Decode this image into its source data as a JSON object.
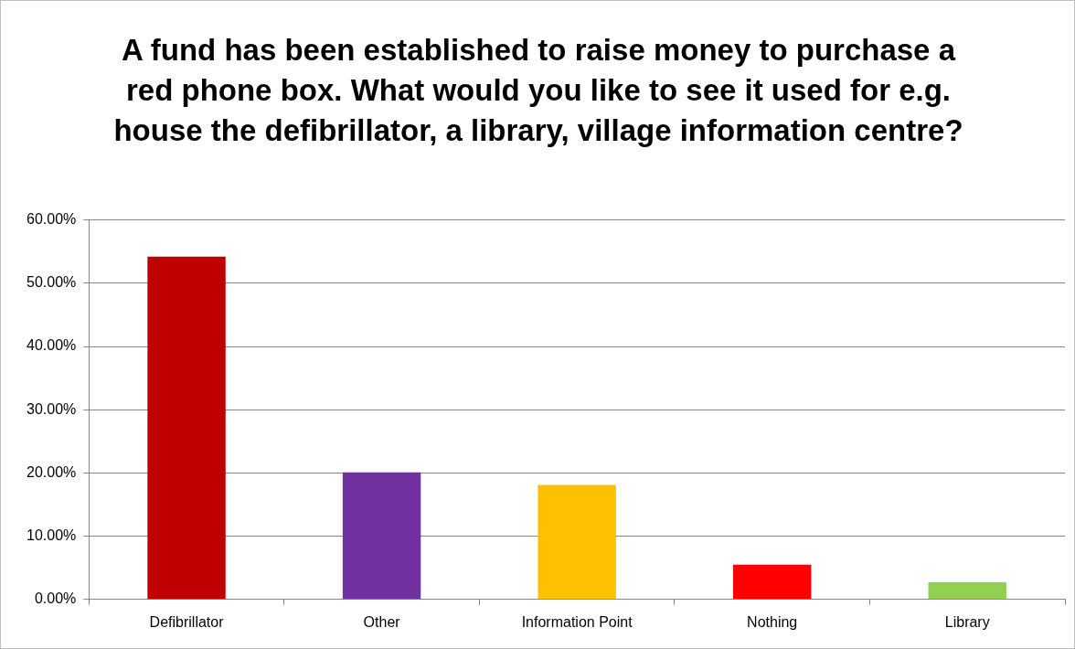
{
  "chart_data": {
    "type": "bar",
    "title": "A fund has been established to raise money to purchase a red phone box. What would you like to see it used for e.g. house the defibrillator, a library, village information centre?",
    "categories": [
      "Defibrillator",
      "Other",
      "Information Point",
      "Nothing",
      "Library"
    ],
    "values": [
      54.2,
      20.1,
      18.1,
      5.5,
      2.7
    ],
    "colors": [
      "#c00000",
      "#7030a0",
      "#ffc000",
      "#ff0000",
      "#92d050"
    ],
    "ylim": [
      0,
      60
    ],
    "yticks": [
      {
        "value": 0,
        "label": "0.00%"
      },
      {
        "value": 10,
        "label": "10.00%"
      },
      {
        "value": 20,
        "label": "20.00%"
      },
      {
        "value": 30,
        "label": "30.00%"
      },
      {
        "value": 40,
        "label": "40.00%"
      },
      {
        "value": 50,
        "label": "50.00%"
      },
      {
        "value": 60,
        "label": "60.00%"
      }
    ],
    "grid": "y",
    "legend": false
  }
}
